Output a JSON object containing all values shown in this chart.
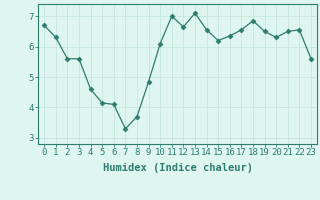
{
  "x": [
    0,
    1,
    2,
    3,
    4,
    5,
    6,
    7,
    8,
    9,
    10,
    11,
    12,
    13,
    14,
    15,
    16,
    17,
    18,
    19,
    20,
    21,
    22,
    23
  ],
  "y": [
    6.7,
    6.3,
    5.6,
    5.6,
    4.6,
    4.15,
    4.1,
    3.3,
    3.7,
    4.85,
    6.1,
    7.0,
    6.65,
    7.1,
    6.55,
    6.2,
    6.35,
    6.55,
    6.85,
    6.5,
    6.3,
    6.5,
    6.55,
    5.6
  ],
  "line_color": "#2d7d6e",
  "marker": "D",
  "marker_size": 2.5,
  "bg_color": "#dff5f0",
  "grid_color": "#c8e8e0",
  "xlabel": "Humidex (Indice chaleur)",
  "xlabel_fontsize": 7.5,
  "tick_fontsize": 6.5,
  "xlim": [
    -0.5,
    23.5
  ],
  "ylim": [
    2.8,
    7.4
  ],
  "yticks": [
    3,
    4,
    5,
    6,
    7
  ],
  "xticks": [
    0,
    1,
    2,
    3,
    4,
    5,
    6,
    7,
    8,
    9,
    10,
    11,
    12,
    13,
    14,
    15,
    16,
    17,
    18,
    19,
    20,
    21,
    22,
    23
  ]
}
